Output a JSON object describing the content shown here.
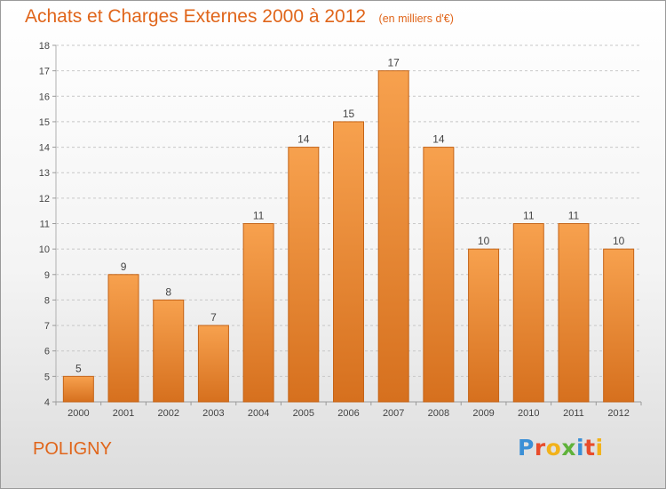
{
  "chart_data": {
    "type": "bar",
    "title": "Achats et Charges Externes 2000 à 2012",
    "subtitle": "(en milliers d'€)",
    "categories": [
      "2000",
      "2001",
      "2002",
      "2003",
      "2004",
      "2005",
      "2006",
      "2007",
      "2008",
      "2009",
      "2010",
      "2011",
      "2012"
    ],
    "values": [
      5,
      9,
      8,
      7,
      11,
      14,
      15,
      17,
      14,
      10,
      11,
      11,
      10
    ],
    "data_labels": [
      "5",
      "9",
      "8",
      "7",
      "11",
      "14",
      "15",
      "17",
      "14",
      "10",
      "11",
      "11",
      "10"
    ],
    "y_ticks": [
      "4",
      "5",
      "6",
      "7",
      "8",
      "9",
      "10",
      "11",
      "12",
      "13",
      "14",
      "15",
      "16",
      "17",
      "18"
    ],
    "ylim": [
      4,
      18
    ],
    "grid": "horizontal",
    "legend": "none",
    "bar_color_top": "#f7a14e",
    "bar_color_bottom": "#d6701e",
    "bar_edge_color": "#c46418",
    "title_color": "#e0651a"
  },
  "footer": {
    "commune": "POLIGNY",
    "logo_letters": [
      {
        "ch": "P",
        "color": "#3b8fd6"
      },
      {
        "ch": "r",
        "color": "#e84c2b"
      },
      {
        "ch": "o",
        "color": "#f2b21a"
      },
      {
        "ch": "x",
        "color": "#5fb23a"
      },
      {
        "ch": "i",
        "color": "#3b8fd6"
      },
      {
        "ch": "t",
        "color": "#e84c2b"
      },
      {
        "ch": "i",
        "color": "#f2b21a"
      }
    ]
  }
}
